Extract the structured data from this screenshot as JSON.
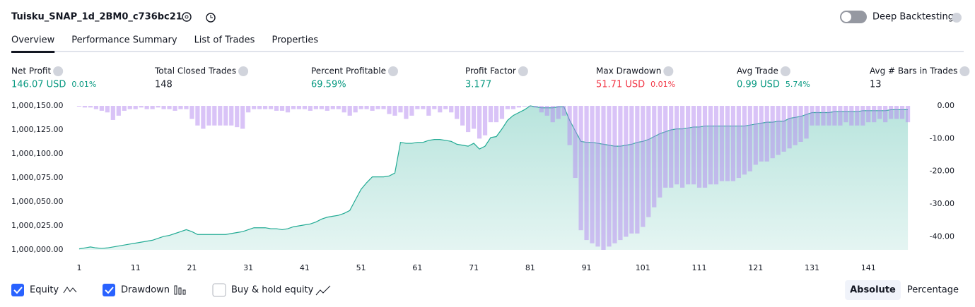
{
  "header": {
    "title": "Tuisku_SNAP_1d_2BM0_c736bc21",
    "toggle_label": "Deep Backtesting"
  },
  "tabs": [
    "Overview",
    "Performance Summary",
    "List of Trades",
    "Properties"
  ],
  "metrics": [
    {
      "label": "Net Profit",
      "value": "146.07 USD",
      "sub": "0.01%",
      "tone": "pos"
    },
    {
      "label": "Total Closed Trades",
      "value": "148",
      "tone": "neutral"
    },
    {
      "label": "Percent Profitable",
      "value": "69.59%",
      "tone": "pos"
    },
    {
      "label": "Profit Factor",
      "value": "3.177",
      "tone": "pos"
    },
    {
      "label": "Max Drawdown",
      "value": "51.71 USD",
      "sub": "0.01%",
      "tone": "neg"
    },
    {
      "label": "Avg Trade",
      "value": "0.99 USD",
      "sub": "5.74%",
      "tone": "pos"
    },
    {
      "label": "Avg # Bars in Trades",
      "value": "13",
      "tone": "neutral"
    }
  ],
  "chart_data": {
    "type": "line",
    "x": [
      1,
      2,
      3,
      4,
      5,
      6,
      7,
      8,
      9,
      10,
      11,
      12,
      13,
      14,
      15,
      16,
      17,
      18,
      19,
      20,
      21,
      22,
      23,
      24,
      25,
      26,
      27,
      28,
      29,
      30,
      31,
      32,
      33,
      34,
      35,
      36,
      37,
      38,
      39,
      40,
      41,
      42,
      43,
      44,
      45,
      46,
      47,
      48,
      49,
      50,
      51,
      52,
      53,
      54,
      55,
      56,
      57,
      58,
      59,
      60,
      61,
      62,
      63,
      64,
      65,
      66,
      67,
      68,
      69,
      70,
      71,
      72,
      73,
      74,
      75,
      76,
      77,
      78,
      79,
      80,
      81,
      82,
      83,
      84,
      85,
      86,
      87,
      88,
      89,
      90,
      91,
      92,
      93,
      94,
      95,
      96,
      97,
      98,
      99,
      100,
      101,
      102,
      103,
      104,
      105,
      106,
      107,
      108,
      109,
      110,
      111,
      112,
      113,
      114,
      115,
      116,
      117,
      118,
      119,
      120,
      121,
      122,
      123,
      124,
      125,
      126,
      127,
      128,
      129,
      130,
      131,
      132,
      133,
      134,
      135,
      136,
      137,
      138,
      139,
      140,
      141,
      142,
      143,
      144,
      145,
      146,
      147,
      148
    ],
    "xlim": [
      0,
      150
    ],
    "xticks": [
      1,
      11,
      21,
      31,
      41,
      51,
      61,
      71,
      81,
      91,
      101,
      111,
      121,
      131,
      141
    ],
    "ylim": [
      1000000,
      1000150
    ],
    "yticks": [
      {
        "value": 1000000,
        "label": "1,000,000.00"
      },
      {
        "value": 1000025,
        "label": "1,000,025.00"
      },
      {
        "value": 1000050,
        "label": "1,000,050.00"
      },
      {
        "value": 1000075,
        "label": "1,000,075.00"
      },
      {
        "value": 1000100,
        "label": "1,000,100.00"
      },
      {
        "value": 1000125,
        "label": "1,000,125.00"
      },
      {
        "value": 1000150,
        "label": "1,000,150.00"
      }
    ],
    "y2lim": [
      -44,
      0
    ],
    "y2ticks": [
      {
        "value": 0,
        "label": "0.00"
      },
      {
        "value": -10,
        "label": "-10.00"
      },
      {
        "value": -20,
        "label": "-20.00"
      },
      {
        "value": -30,
        "label": "-30.00"
      },
      {
        "value": -40,
        "label": "-40.00"
      }
    ],
    "series": [
      {
        "name": "Equity",
        "color": "#22ab94",
        "kind": "area",
        "values": [
          1000001,
          1000002,
          1000003,
          1000002,
          1000001.5,
          1000002,
          1000003,
          1000004,
          1000005,
          1000006,
          1000007,
          1000008,
          1000009,
          1000010,
          1000012,
          1000014,
          1000015,
          1000017,
          1000019,
          1000021,
          1000019,
          1000016,
          1000016,
          1000016,
          1000016,
          1000016,
          1000016,
          1000017,
          1000018,
          1000019,
          1000021,
          1000023,
          1000023,
          1000023,
          1000022,
          1000022,
          1000021,
          1000022,
          1000024,
          1000025,
          1000026,
          1000027,
          1000029,
          1000032,
          1000034,
          1000035,
          1000036,
          1000038,
          1000041,
          1000052,
          1000063,
          1000070,
          1000076,
          1000076,
          1000076,
          1000077,
          1000080,
          1000112,
          1000111,
          1000111,
          1000112,
          1000112,
          1000114,
          1000115,
          1000115,
          1000114,
          1000113,
          1000110,
          1000109,
          1000108,
          1000111,
          1000105,
          1000108,
          1000117,
          1000118,
          1000126,
          1000135,
          1000140,
          1000143,
          1000146,
          1000150,
          1000149,
          1000148,
          1000148,
          1000148,
          1000149,
          1000149,
          1000135,
          1000124,
          1000113,
          1000112,
          1000112,
          1000111,
          1000110,
          1000109,
          1000108,
          1000108,
          1000109,
          1000110,
          1000112,
          1000113,
          1000115,
          1000118,
          1000121,
          1000123,
          1000125,
          1000126,
          1000126,
          1000127,
          1000128,
          1000128,
          1000129,
          1000129,
          1000129,
          1000129,
          1000129,
          1000129,
          1000129,
          1000129,
          1000130,
          1000131,
          1000132,
          1000133,
          1000133,
          1000134,
          1000134,
          1000137,
          1000138,
          1000139,
          1000141,
          1000143,
          1000143,
          1000143,
          1000143,
          1000144,
          1000144,
          1000144,
          1000144,
          1000144,
          1000145,
          1000145,
          1000145,
          1000145,
          1000145,
          1000146,
          1000146,
          1000146,
          1000146.07
        ]
      },
      {
        "name": "Drawdown",
        "color": "#b388f0",
        "kind": "bar",
        "axis": "y2",
        "values": [
          0,
          -0.5,
          -0.5,
          -1,
          -1.5,
          -2,
          -4.3,
          -3,
          -1.5,
          -1,
          -1,
          -0.5,
          -1,
          -1,
          -0.5,
          -1,
          -1,
          -1.5,
          -1,
          -1,
          -4,
          -6,
          -7,
          -6,
          -6,
          -6,
          -6,
          -6,
          -6.5,
          -7,
          -2,
          -1,
          -1,
          -1,
          -1,
          -1.5,
          -1.5,
          -2,
          -1,
          -1,
          -1,
          -1.5,
          -1,
          -1,
          -1.5,
          -1,
          -1,
          -2,
          -3,
          -2,
          -1,
          -1,
          -1.5,
          -1,
          -1,
          -2.5,
          -3,
          -2,
          -4,
          -3,
          -1,
          -1,
          -3,
          -1,
          -2,
          -1,
          -2,
          -4,
          -6,
          -8,
          -7,
          -10,
          -9,
          -5,
          -5,
          -4,
          -1,
          -1,
          -0.5,
          0,
          0,
          -0.5,
          -2,
          -3,
          -5,
          -4,
          -3,
          -12,
          -22,
          -38,
          -41,
          -42,
          -43,
          -44,
          -43,
          -42,
          -41,
          -40,
          -39,
          -39,
          -37,
          -34,
          -31,
          -28,
          -25,
          -25,
          -24,
          -25,
          -24,
          -24,
          -25,
          -25,
          -24,
          -24,
          -23,
          -23,
          -23,
          -22,
          -21,
          -20,
          -18,
          -17,
          -17,
          -16,
          -15,
          -14,
          -13,
          -12,
          -11,
          -10,
          -6,
          -6,
          -6,
          -6,
          -6,
          -6,
          -5,
          -6,
          -6,
          -6,
          -5,
          -5,
          -4,
          -5,
          -4,
          -4,
          -4,
          -5
        ]
      }
    ]
  },
  "legend_controls": [
    {
      "label": "Buy & hold equity",
      "checked": false
    }
  ],
  "view_buttons": [
    {
      "label": "Absolute",
      "active": true
    },
    {
      "label": "Percentage",
      "active": false
    }
  ]
}
